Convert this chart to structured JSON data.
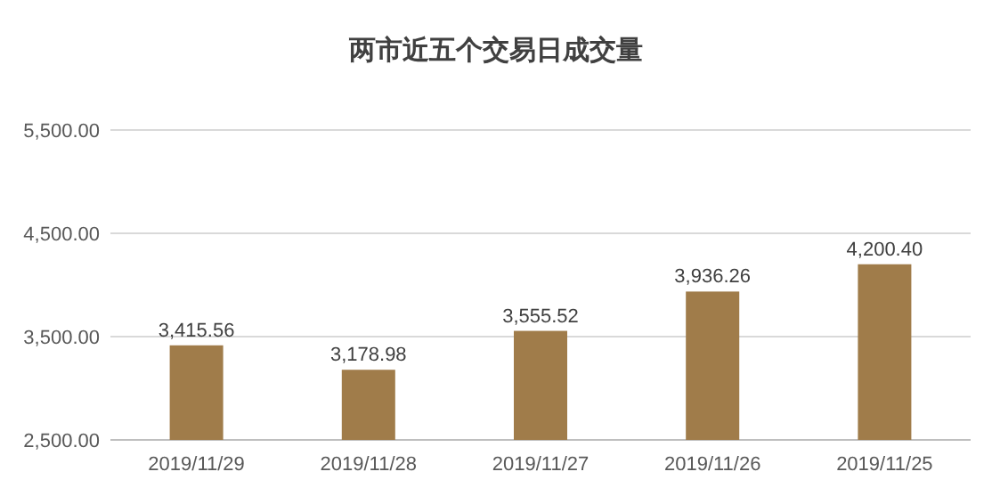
{
  "chart_data": {
    "type": "bar",
    "title": "两市近五个交易日成交量",
    "categories": [
      "2019/11/29",
      "2019/11/28",
      "2019/11/27",
      "2019/11/26",
      "2019/11/25"
    ],
    "series": [
      {
        "color": "#a07c4a",
        "values": [
          3415.56,
          3178.98,
          3555.52,
          3936.26,
          4200.4
        ]
      }
    ],
    "value_labels": [
      "3,415.56",
      "3,178.98",
      "3,555.52",
      "3,936.26",
      "4,200.40"
    ],
    "ylim": [
      2500,
      5500
    ],
    "yticks": [
      {
        "value": 2500,
        "label": "2,500.00"
      },
      {
        "value": 3500,
        "label": "3,500.00"
      },
      {
        "value": 4500,
        "label": "4,500.00"
      },
      {
        "value": 5500,
        "label": "5,500.00"
      }
    ],
    "grid": "y"
  }
}
